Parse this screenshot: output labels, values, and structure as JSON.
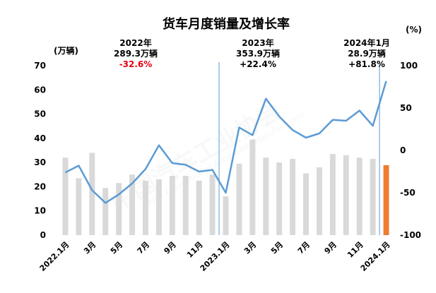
{
  "chart_data": {
    "type": "bar",
    "title": "货车月度销量及增长率",
    "left_axis_unit": "(万辆)",
    "right_axis_unit": "(%)",
    "ylim_left": [
      0,
      70
    ],
    "ylim_right": [
      -100,
      100
    ],
    "yticks_left": [
      "0",
      "10",
      "20",
      "30",
      "40",
      "50",
      "60",
      "70"
    ],
    "yticks_right": [
      "-100",
      "-50",
      "0",
      "50",
      "100"
    ],
    "x_tick_labels": [
      "2022.1月",
      "3月",
      "5月",
      "7月",
      "9月",
      "11月",
      "2023.1月",
      "3月",
      "5月",
      "7月",
      "9月",
      "11月",
      "2024.1月"
    ],
    "categories": [
      "2022.1",
      "2022.2",
      "2022.3",
      "2022.4",
      "2022.5",
      "2022.6",
      "2022.7",
      "2022.8",
      "2022.9",
      "2022.10",
      "2022.11",
      "2022.12",
      "2023.1",
      "2023.2",
      "2023.3",
      "2023.4",
      "2023.5",
      "2023.6",
      "2023.7",
      "2023.8",
      "2023.9",
      "2023.10",
      "2023.11",
      "2023.12",
      "2024.1"
    ],
    "series": [
      {
        "kind": "bar",
        "values": [
          32,
          23.5,
          34,
          19.5,
          21.5,
          25,
          22.5,
          23,
          24.5,
          24.5,
          22.5,
          25,
          16,
          29.5,
          39.5,
          32,
          30,
          31.5,
          25.5,
          28,
          33.5,
          33,
          32,
          31.5,
          28.9
        ],
        "color": "#d9d9d9",
        "highlight_color": "#ed7d31"
      },
      {
        "kind": "line",
        "axis": "right",
        "values": [
          -26,
          -18,
          -47,
          -62,
          -52,
          -39,
          -22,
          6,
          -15,
          -17,
          -25,
          -23,
          -50,
          27,
          18,
          61,
          40,
          24,
          15,
          20,
          36,
          35,
          47,
          29,
          81.8
        ],
        "color": "#5b9bd5"
      }
    ],
    "annotations": [
      {
        "lines": [
          "2022年",
          "289.3万辆",
          "-32.6%"
        ],
        "negative_last": true
      },
      {
        "lines": [
          "2023年",
          "353.9万辆",
          "+22.4%"
        ],
        "negative_last": false
      },
      {
        "lines": [
          "2024年1月",
          "28.9万辆",
          "+81.8%"
        ],
        "negative_last": false
      }
    ],
    "watermark": [
      "中国汽车工业协会",
      "China Association of Automobile Manufacturers"
    ]
  }
}
